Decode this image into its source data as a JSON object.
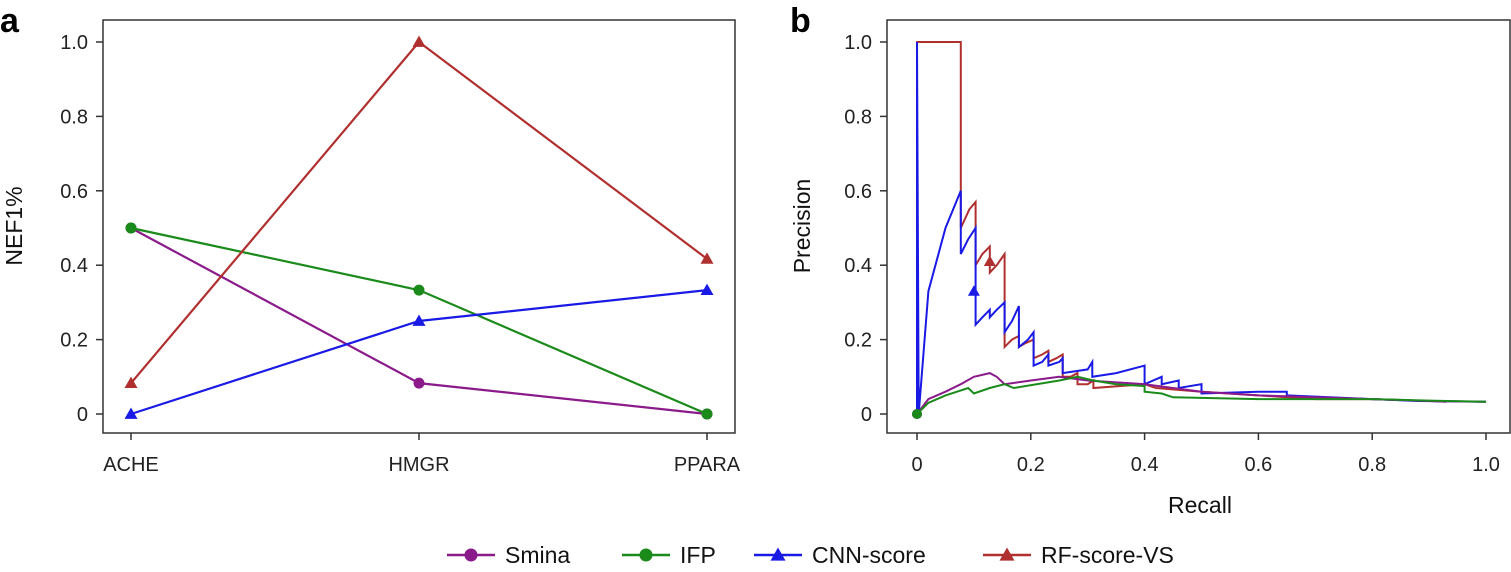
{
  "colors": {
    "Smina": "#8b1a8b",
    "IFP": "#1a8a1a",
    "CNN-score": "#1a1ae6",
    "RF-score-VS": "#b03030"
  },
  "legend": [
    {
      "label": "Smina",
      "marker": "circle"
    },
    {
      "label": "IFP",
      "marker": "circle"
    },
    {
      "label": "CNN-score",
      "marker": "triangle"
    },
    {
      "label": "RF-score-VS",
      "marker": "triangle"
    }
  ],
  "chart_data": [
    {
      "panel": "a",
      "type": "line",
      "categories": [
        "ACHE",
        "HMGR",
        "PPARA"
      ],
      "ylabel": "NEF1%",
      "xlabel": "",
      "ylim": [
        0,
        1.0
      ],
      "yticks": [
        "0",
        "0.2",
        "0.4",
        "0.6",
        "0.8",
        "1.0"
      ],
      "series": [
        {
          "name": "Smina",
          "marker": "circle",
          "values": [
            0.5,
            0.083,
            0.0
          ]
        },
        {
          "name": "IFP",
          "marker": "circle",
          "values": [
            0.5,
            0.333,
            0.0
          ]
        },
        {
          "name": "CNN-score",
          "marker": "triangle",
          "values": [
            0.0,
            0.25,
            0.333
          ]
        },
        {
          "name": "RF-score-VS",
          "marker": "triangle",
          "values": [
            0.083,
            1.0,
            0.417
          ]
        }
      ]
    },
    {
      "panel": "b",
      "type": "line",
      "xlabel": "Recall",
      "ylabel": "Precision",
      "xlim": [
        0,
        1.0
      ],
      "ylim": [
        0,
        1.0
      ],
      "xticks": [
        "0",
        "0.2",
        "0.4",
        "0.6",
        "0.8",
        "1.0"
      ],
      "yticks": [
        "0",
        "0.2",
        "0.4",
        "0.6",
        "0.8",
        "1.0"
      ],
      "series": [
        {
          "name": "RF-score-VS",
          "marker": "triangle",
          "points": [
            [
              0,
              0
            ],
            [
              0,
              1.0
            ],
            [
              0.077,
              1.0
            ],
            [
              0.077,
              0.5
            ],
            [
              0.092,
              0.55
            ],
            [
              0.103,
              0.57
            ],
            [
              0.103,
              0.4
            ],
            [
              0.115,
              0.43
            ],
            [
              0.128,
              0.45
            ],
            [
              0.128,
              0.38
            ],
            [
              0.14,
              0.4
            ],
            [
              0.154,
              0.43
            ],
            [
              0.154,
              0.18
            ],
            [
              0.167,
              0.2
            ],
            [
              0.179,
              0.21
            ],
            [
              0.179,
              0.18
            ],
            [
              0.19,
              0.19
            ],
            [
              0.205,
              0.2
            ],
            [
              0.205,
              0.15
            ],
            [
              0.22,
              0.16
            ],
            [
              0.231,
              0.17
            ],
            [
              0.231,
              0.14
            ],
            [
              0.245,
              0.15
            ],
            [
              0.256,
              0.16
            ],
            [
              0.256,
              0.1
            ],
            [
              0.27,
              0.1
            ],
            [
              0.282,
              0.11
            ],
            [
              0.282,
              0.08
            ],
            [
              0.3,
              0.08
            ],
            [
              0.31,
              0.09
            ],
            [
              0.31,
              0.07
            ],
            [
              0.4,
              0.08
            ],
            [
              0.42,
              0.07
            ],
            [
              0.5,
              0.06
            ],
            [
              0.6,
              0.05
            ],
            [
              0.7,
              0.04
            ],
            [
              0.8,
              0.04
            ],
            [
              0.9,
              0.035
            ],
            [
              0.93,
              0.033
            ]
          ],
          "marker_point": [
            0.128,
            0.41
          ]
        },
        {
          "name": "CNN-score",
          "marker": "triangle",
          "points": [
            [
              0,
              0
            ],
            [
              0,
              1.0
            ],
            [
              0.003,
              0.0
            ],
            [
              0.02,
              0.33
            ],
            [
              0.05,
              0.5
            ],
            [
              0.077,
              0.6
            ],
            [
              0.077,
              0.43
            ],
            [
              0.09,
              0.47
            ],
            [
              0.103,
              0.5
            ],
            [
              0.103,
              0.24
            ],
            [
              0.115,
              0.26
            ],
            [
              0.128,
              0.28
            ],
            [
              0.128,
              0.26
            ],
            [
              0.14,
              0.28
            ],
            [
              0.154,
              0.3
            ],
            [
              0.154,
              0.22
            ],
            [
              0.167,
              0.25
            ],
            [
              0.179,
              0.29
            ],
            [
              0.179,
              0.18
            ],
            [
              0.195,
              0.2
            ],
            [
              0.205,
              0.22
            ],
            [
              0.205,
              0.13
            ],
            [
              0.22,
              0.14
            ],
            [
              0.231,
              0.16
            ],
            [
              0.231,
              0.13
            ],
            [
              0.25,
              0.14
            ],
            [
              0.256,
              0.15
            ],
            [
              0.256,
              0.11
            ],
            [
              0.3,
              0.12
            ],
            [
              0.308,
              0.14
            ],
            [
              0.308,
              0.1
            ],
            [
              0.35,
              0.11
            ],
            [
              0.4,
              0.13
            ],
            [
              0.4,
              0.08
            ],
            [
              0.43,
              0.1
            ],
            [
              0.43,
              0.08
            ],
            [
              0.46,
              0.09
            ],
            [
              0.46,
              0.07
            ],
            [
              0.5,
              0.08
            ],
            [
              0.5,
              0.055
            ],
            [
              0.6,
              0.06
            ],
            [
              0.65,
              0.06
            ],
            [
              0.65,
              0.05
            ],
            [
              0.8,
              0.04
            ],
            [
              0.88,
              0.035
            ],
            [
              1.0,
              0.033
            ]
          ],
          "marker_point": [
            0.1,
            0.33
          ]
        },
        {
          "name": "Smina",
          "marker": "circle",
          "points": [
            [
              0,
              0
            ],
            [
              0.02,
              0.04
            ],
            [
              0.05,
              0.06
            ],
            [
              0.077,
              0.08
            ],
            [
              0.1,
              0.1
            ],
            [
              0.128,
              0.11
            ],
            [
              0.14,
              0.1
            ],
            [
              0.154,
              0.08
            ],
            [
              0.2,
              0.09
            ],
            [
              0.25,
              0.1
            ],
            [
              0.3,
              0.09
            ],
            [
              0.4,
              0.08
            ],
            [
              0.5,
              0.06
            ],
            [
              0.6,
              0.05
            ],
            [
              0.8,
              0.04
            ],
            [
              0.9,
              0.035
            ],
            [
              1.0,
              0.033
            ]
          ],
          "marker_point": [
            0,
            0
          ]
        },
        {
          "name": "IFP",
          "marker": "circle",
          "points": [
            [
              0,
              0
            ],
            [
              0.02,
              0.03
            ],
            [
              0.05,
              0.05
            ],
            [
              0.09,
              0.07
            ],
            [
              0.1,
              0.055
            ],
            [
              0.128,
              0.07
            ],
            [
              0.154,
              0.08
            ],
            [
              0.17,
              0.07
            ],
            [
              0.25,
              0.09
            ],
            [
              0.282,
              0.1
            ],
            [
              0.31,
              0.09
            ],
            [
              0.35,
              0.08
            ],
            [
              0.4,
              0.075
            ],
            [
              0.4,
              0.06
            ],
            [
              0.43,
              0.055
            ],
            [
              0.45,
              0.045
            ],
            [
              0.6,
              0.04
            ],
            [
              0.8,
              0.04
            ],
            [
              0.9,
              0.036
            ],
            [
              1.0,
              0.033
            ]
          ],
          "marker_point": [
            0,
            0
          ]
        }
      ]
    }
  ]
}
